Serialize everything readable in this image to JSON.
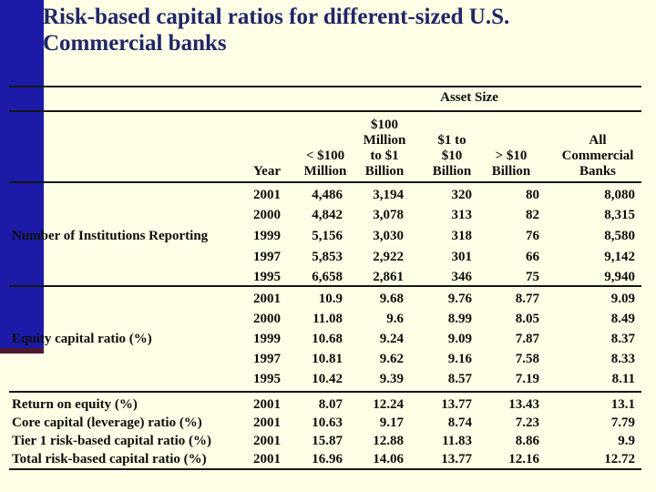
{
  "slide": {
    "title": "Risk-based capital ratios for different-sized U.S. Commercial banks"
  },
  "colors": {
    "background": "#FFFEE6",
    "left_bar": "#1C1AA6",
    "accent_strip": "#4E1930",
    "title_text": "#1F2767",
    "table_text": "#0D0D0C",
    "rule": "#161616"
  },
  "table": {
    "span_header": "Asset Size",
    "columns": [
      {
        "label": "Year",
        "lines": [
          "Year"
        ]
      },
      {
        "label": "< $100 Million",
        "lines": [
          "< $100",
          "Million"
        ]
      },
      {
        "label": "$100 Million to $1 Billion",
        "lines": [
          "$100",
          "Million",
          "to $1",
          "Billion"
        ]
      },
      {
        "label": "$1 to $10 Billion",
        "lines": [
          "$1 to",
          "$10",
          "Billion"
        ]
      },
      {
        "label": "> $10 Billion",
        "lines": [
          "> $10",
          "Billion"
        ]
      },
      {
        "label": "All Commercial Banks",
        "lines": [
          "All",
          "Commercial",
          "Banks"
        ]
      }
    ],
    "sections": [
      {
        "label": "Number of Institutions Reporting",
        "rows": [
          {
            "year": "2001",
            "values": [
              "4,486",
              "3,194",
              "320",
              "80",
              "8,080"
            ]
          },
          {
            "year": "2000",
            "values": [
              "4,842",
              "3,078",
              "313",
              "82",
              "8,315"
            ]
          },
          {
            "year": "1999",
            "values": [
              "5,156",
              "3,030",
              "318",
              "76",
              "8,580"
            ]
          },
          {
            "year": "1997",
            "values": [
              "5,853",
              "2,922",
              "301",
              "66",
              "9,142"
            ]
          },
          {
            "year": "1995",
            "values": [
              "6,658",
              "2,861",
              "346",
              "75",
              "9,940"
            ]
          }
        ]
      },
      {
        "label": "Equity capital ratio (%)",
        "rows": [
          {
            "year": "2001",
            "values": [
              "10.9",
              "9.68",
              "9.76",
              "8.77",
              "9.09"
            ]
          },
          {
            "year": "2000",
            "values": [
              "11.08",
              "9.6",
              "8.99",
              "8.05",
              "8.49"
            ]
          },
          {
            "year": "1999",
            "values": [
              "10.68",
              "9.24",
              "9.09",
              "7.87",
              "8.37"
            ]
          },
          {
            "year": "1997",
            "values": [
              "10.81",
              "9.62",
              "9.16",
              "7.58",
              "8.33"
            ]
          },
          {
            "year": "1995",
            "values": [
              "10.42",
              "9.39",
              "8.57",
              "7.19",
              "8.11"
            ]
          }
        ]
      },
      {
        "label": null,
        "rows": [
          {
            "label": "Return on equity (%)",
            "year": "2001",
            "values": [
              "8.07",
              "12.24",
              "13.77",
              "13.43",
              "13.1"
            ]
          },
          {
            "label": "Core capital (leverage) ratio (%)",
            "year": "2001",
            "values": [
              "10.63",
              "9.17",
              "8.74",
              "7.23",
              "7.79"
            ]
          },
          {
            "label": "Tier 1 risk-based capital ratio (%)",
            "year": "2001",
            "values": [
              "15.87",
              "12.88",
              "11.83",
              "8.86",
              "9.9"
            ]
          },
          {
            "label": "Total risk-based capital ratio (%)",
            "year": "2001",
            "values": [
              "16.96",
              "14.06",
              "13.77",
              "12.16",
              "12.72"
            ]
          }
        ]
      }
    ]
  }
}
